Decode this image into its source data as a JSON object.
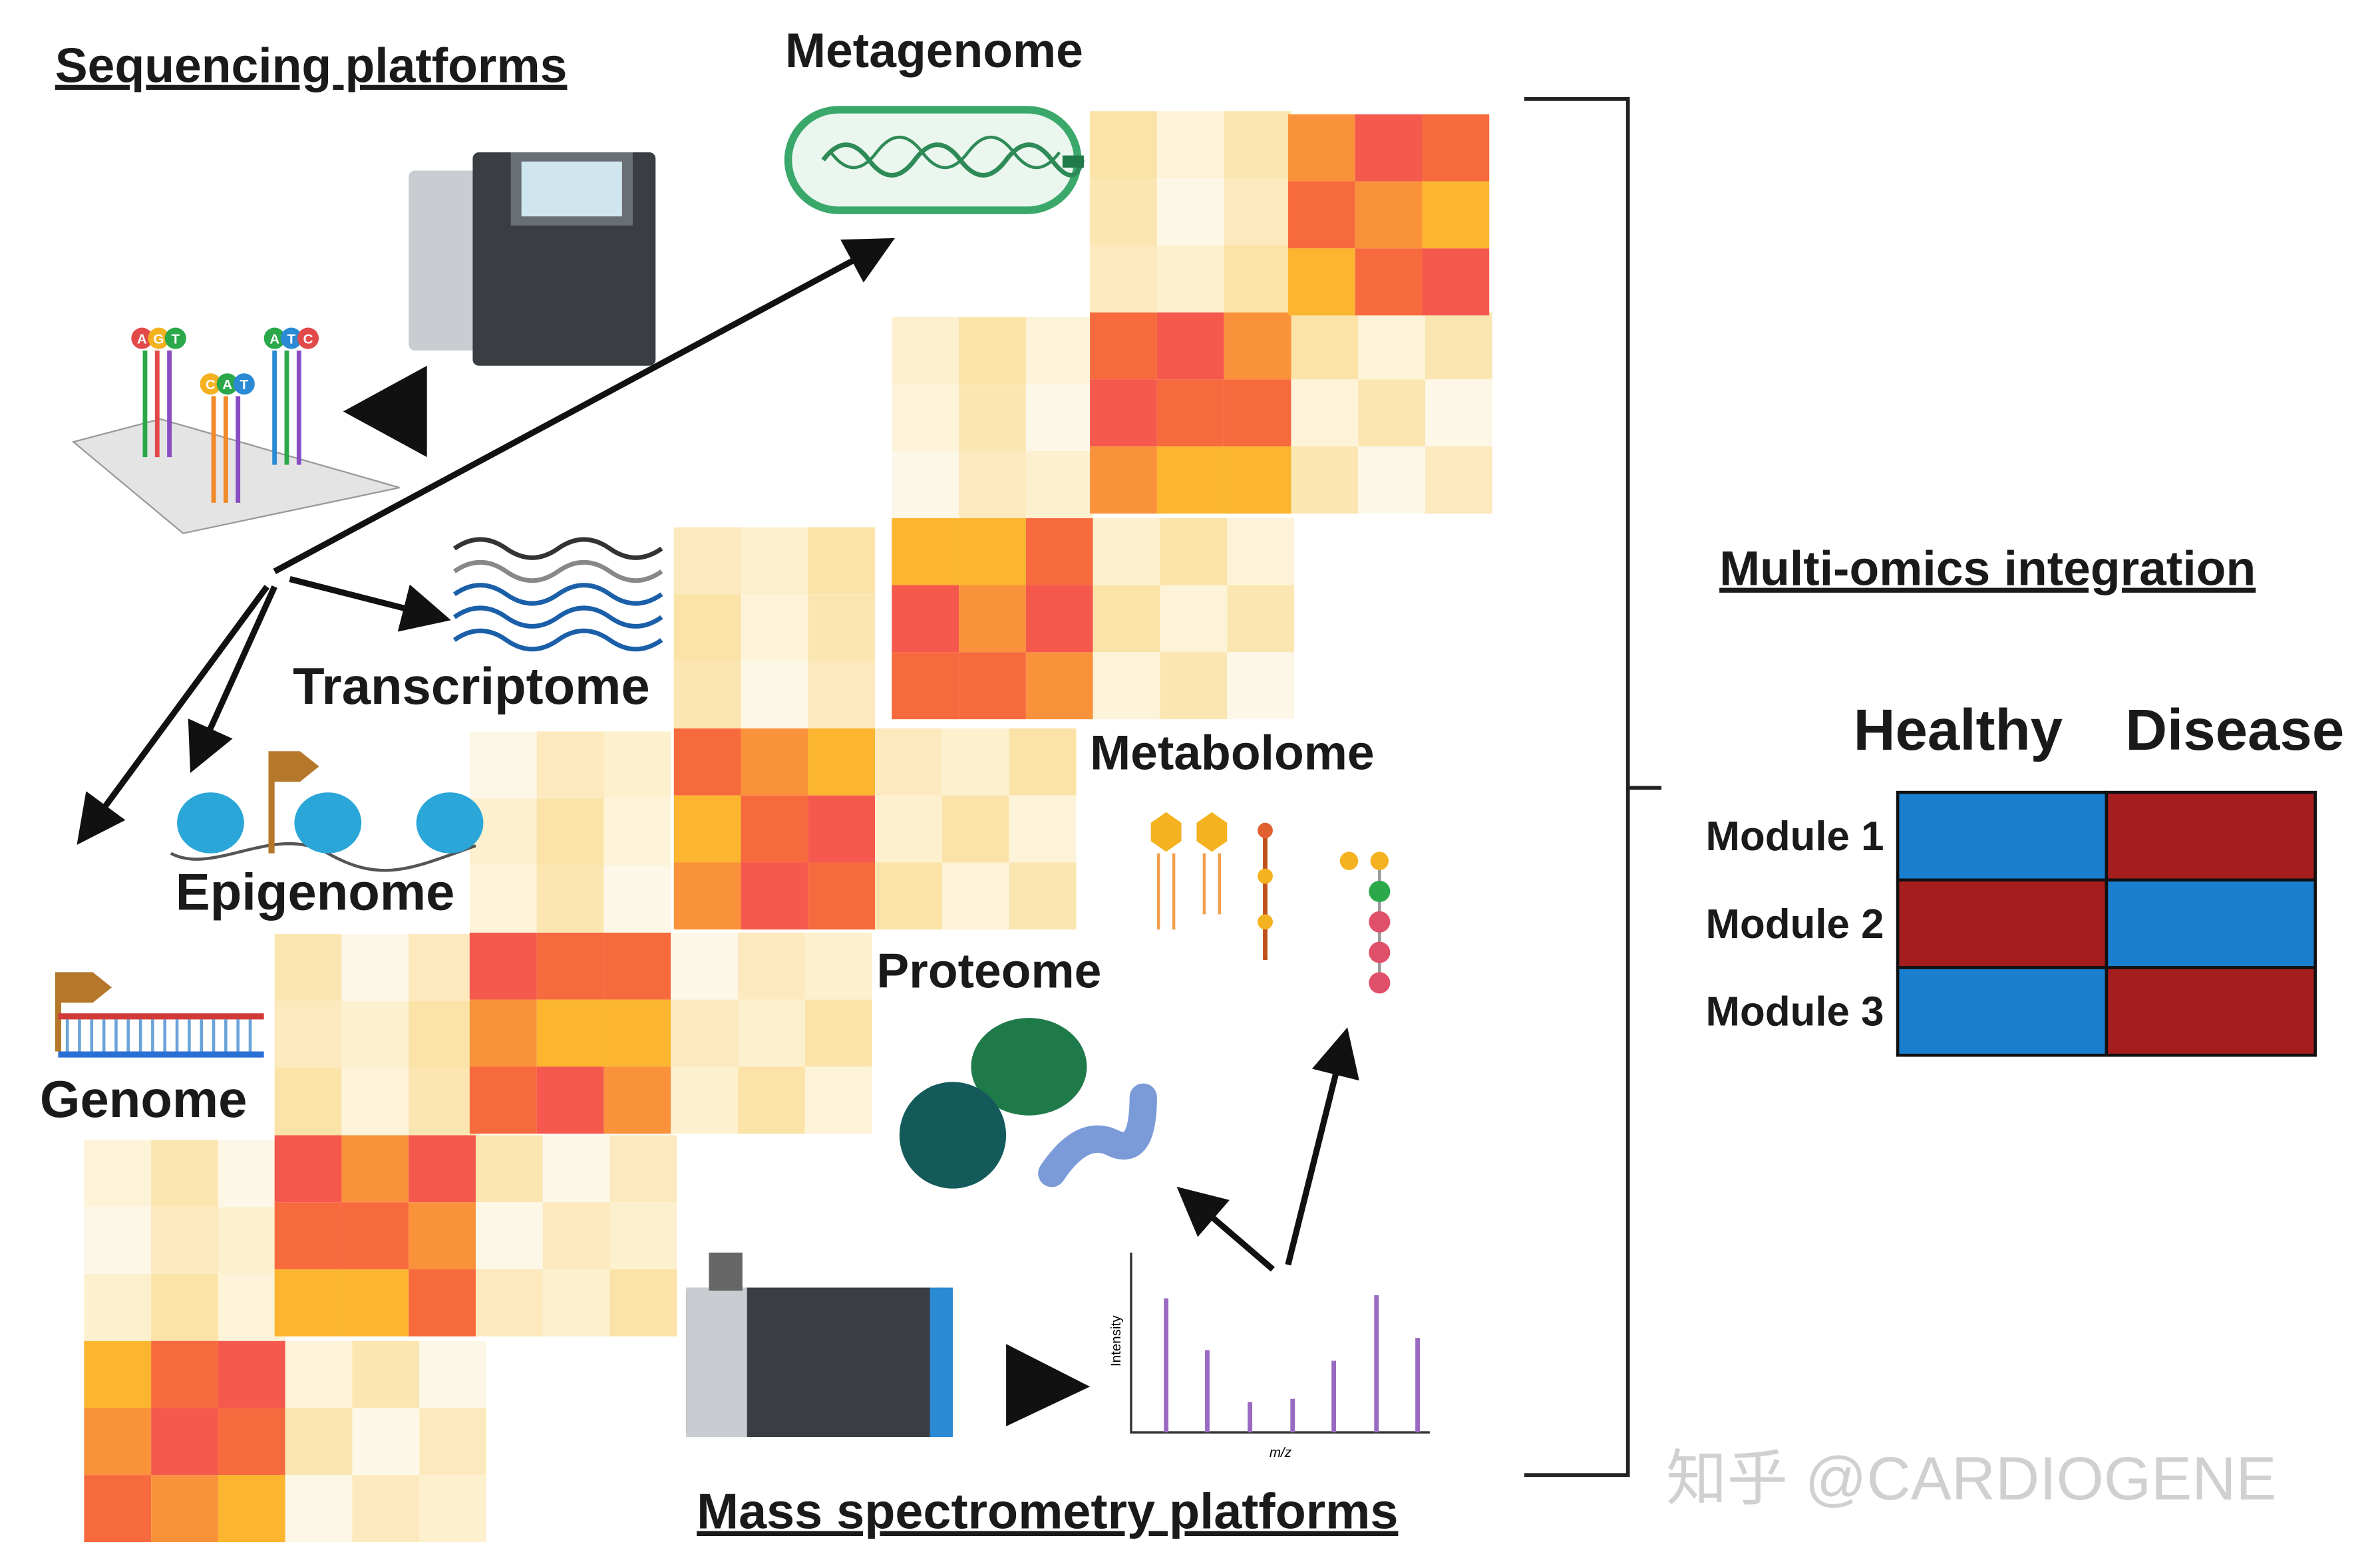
{
  "sequencing": {
    "title": "Sequencing platforms",
    "probes": [
      [
        "A",
        "G",
        "T"
      ],
      [
        "C",
        "A",
        "T"
      ],
      [
        "A",
        "T",
        "C"
      ]
    ]
  },
  "omics": {
    "metagenome": "Metagenome",
    "transcriptome": "Transcriptome",
    "epigenome": "Epigenome",
    "genome": "Genome",
    "metabolome": "Metabolome",
    "proteome": "Proteome"
  },
  "mass_spectrometry": {
    "title": "Mass spectrometry platforms",
    "y_label": "Intensity",
    "x_label": "m/z"
  },
  "integration": {
    "title": "Multi-omics integration",
    "columns": [
      "Healthy",
      "Disease"
    ],
    "rows": [
      "Module 1",
      "Module 2",
      "Module 3"
    ]
  },
  "watermark": "知乎 @CARDIOGENE"
}
